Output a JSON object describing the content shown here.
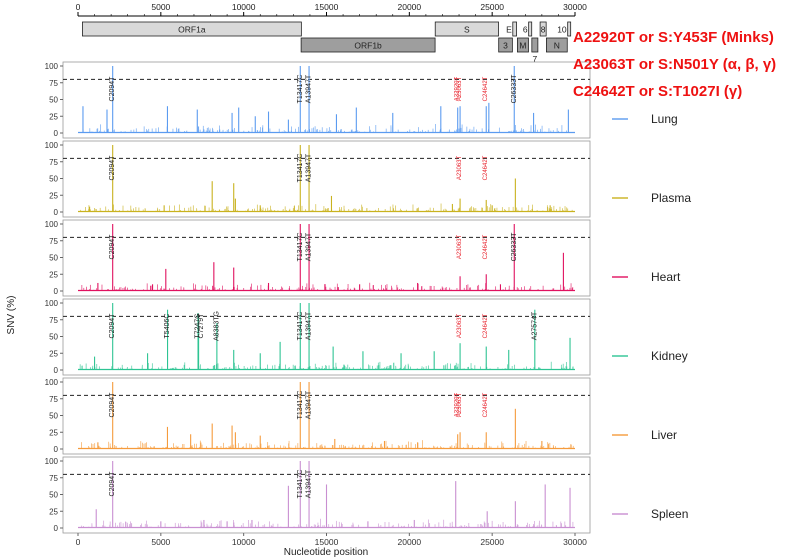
{
  "chart_data": {
    "type": "line",
    "xlabel": "Nucleotide position",
    "ylabel": "SNV (%)",
    "xlim": [
      0,
      30000
    ],
    "ylim": [
      0,
      100
    ],
    "x_ticks": [
      0,
      5000,
      10000,
      15000,
      20000,
      25000,
      30000
    ],
    "y_ticks": [
      0,
      25,
      50,
      75,
      100
    ],
    "threshold": 80,
    "threshold_style": "dashed",
    "genome_map": {
      "ticks": [
        0,
        5000,
        10000,
        15000,
        20000,
        25000,
        30000
      ],
      "genes": [
        {
          "label": "ORF1a",
          "start": 266,
          "end": 13483,
          "row": 1,
          "fill": "#d9d9d9"
        },
        {
          "label": "ORF1b",
          "start": 13468,
          "end": 21555,
          "row": 2,
          "fill": "#9e9e9e"
        },
        {
          "label": "S",
          "start": 21563,
          "end": 25384,
          "row": 1,
          "fill": "#d9d9d9"
        },
        {
          "label": "3",
          "start": 25393,
          "end": 26220,
          "row": 2,
          "fill": "#9e9e9e"
        },
        {
          "label": "E",
          "start": 26245,
          "end": 26472,
          "row": 1,
          "fill": "#d9d9d9"
        },
        {
          "label": "M",
          "start": 26523,
          "end": 27191,
          "row": 2,
          "fill": "#9e9e9e"
        },
        {
          "label": "6",
          "start": 27202,
          "end": 27387,
          "row": 1,
          "fill": "#d9d9d9"
        },
        {
          "label": "7",
          "start": 27394,
          "end": 27759,
          "row": 2,
          "fill": "#9e9e9e"
        },
        {
          "label": "8",
          "start": 27894,
          "end": 28259,
          "row": 1,
          "fill": "#d9d9d9"
        },
        {
          "label": "N",
          "start": 28274,
          "end": 29533,
          "row": 2,
          "fill": "#9e9e9e"
        },
        {
          "label": "10",
          "start": 29558,
          "end": 29674,
          "row": 1,
          "fill": "#d9d9d9"
        }
      ]
    },
    "mutation_notes": [
      "A22920T or S:Y453F (Minks)",
      "A23063T or S:N501Y (α, β, γ)",
      "C24642T or S:T1027I (γ)"
    ],
    "series": [
      {
        "name": "Lung",
        "color": "#5b9bf0",
        "peaks": [
          [
            2094,
            100
          ],
          [
            13417,
            100
          ],
          [
            13947,
            100
          ],
          [
            26333,
            100
          ],
          [
            300,
            40
          ],
          [
            1750,
            35
          ],
          [
            5400,
            40
          ],
          [
            7200,
            35
          ],
          [
            9300,
            30
          ],
          [
            9700,
            38
          ],
          [
            10700,
            25
          ],
          [
            11500,
            32
          ],
          [
            12700,
            20
          ],
          [
            15600,
            28
          ],
          [
            16800,
            38
          ],
          [
            19000,
            30
          ],
          [
            21900,
            40
          ],
          [
            22920,
            38
          ],
          [
            23063,
            40
          ],
          [
            24642,
            40
          ],
          [
            24800,
            45
          ],
          [
            27500,
            30
          ],
          [
            29600,
            35
          ]
        ],
        "labels": [
          {
            "text": "C2094T",
            "x": 2094,
            "red": false
          },
          {
            "text": "T13417C",
            "x": 13417,
            "red": false
          },
          {
            "text": "A13947T",
            "x": 13947,
            "red": false
          },
          {
            "text": "C26333T",
            "x": 26333,
            "red": false
          },
          {
            "text": "A22920T",
            "x": 22920,
            "red": true
          },
          {
            "text": "A23063T",
            "x": 23063,
            "red": true
          },
          {
            "text": "C24642T",
            "x": 24642,
            "red": true
          }
        ]
      },
      {
        "name": "Plasma",
        "color": "#c9b21f",
        "peaks": [
          [
            2094,
            100
          ],
          [
            13417,
            100
          ],
          [
            13947,
            100
          ],
          [
            8100,
            46
          ],
          [
            9400,
            43
          ],
          [
            9500,
            20
          ],
          [
            15300,
            24
          ],
          [
            23063,
            20
          ],
          [
            24642,
            18
          ],
          [
            26400,
            50
          ],
          [
            700,
            8
          ],
          [
            5200,
            10
          ],
          [
            11000,
            10
          ],
          [
            22600,
            12
          ],
          [
            25000,
            10
          ],
          [
            28500,
            10
          ]
        ],
        "labels": [
          {
            "text": "C2094T",
            "x": 2094,
            "red": false
          },
          {
            "text": "T13417C",
            "x": 13417,
            "red": false
          },
          {
            "text": "A13947T",
            "x": 13947,
            "red": false
          },
          {
            "text": "A23063T",
            "x": 23063,
            "red": true
          },
          {
            "text": "C24642T",
            "x": 24642,
            "red": true
          }
        ]
      },
      {
        "name": "Heart",
        "color": "#e0115f",
        "peaks": [
          [
            2094,
            100
          ],
          [
            13417,
            100
          ],
          [
            13947,
            100
          ],
          [
            26333,
            100
          ],
          [
            5300,
            33
          ],
          [
            8200,
            43
          ],
          [
            9400,
            35
          ],
          [
            23063,
            22
          ],
          [
            24642,
            25
          ],
          [
            29300,
            57
          ],
          [
            1200,
            12
          ],
          [
            4500,
            10
          ],
          [
            11500,
            12
          ],
          [
            17000,
            10
          ],
          [
            20500,
            12
          ],
          [
            25500,
            10
          ]
        ],
        "labels": [
          {
            "text": "C2094T",
            "x": 2094,
            "red": false
          },
          {
            "text": "T13417C",
            "x": 13417,
            "red": false
          },
          {
            "text": "A13947T",
            "x": 13947,
            "red": false
          },
          {
            "text": "C26333T",
            "x": 26333,
            "red": false
          },
          {
            "text": "A23063T",
            "x": 23063,
            "red": true
          },
          {
            "text": "C24642T",
            "x": 24642,
            "red": true
          }
        ]
      },
      {
        "name": "Kidney",
        "color": "#2ec493",
        "peaks": [
          [
            2094,
            100
          ],
          [
            5406,
            90
          ],
          [
            7247,
            85
          ],
          [
            7279,
            80
          ],
          [
            8383,
            70
          ],
          [
            13417,
            100
          ],
          [
            13947,
            100
          ],
          [
            27574,
            90
          ],
          [
            1000,
            20
          ],
          [
            4200,
            25
          ],
          [
            9400,
            30
          ],
          [
            11000,
            25
          ],
          [
            12200,
            42
          ],
          [
            15400,
            35
          ],
          [
            17200,
            28
          ],
          [
            19500,
            25
          ],
          [
            21500,
            28
          ],
          [
            23063,
            40
          ],
          [
            24642,
            35
          ],
          [
            26000,
            30
          ],
          [
            29700,
            48
          ]
        ],
        "labels": [
          {
            "text": "C2094T",
            "x": 2094,
            "red": false
          },
          {
            "text": "T5406C",
            "x": 5406,
            "red": false
          },
          {
            "text": "T7247G",
            "x": 7247,
            "red": false
          },
          {
            "text": "C7279T",
            "x": 7279,
            "red": false
          },
          {
            "text": "A8383TG",
            "x": 8383,
            "red": false
          },
          {
            "text": "T13417C",
            "x": 13417,
            "red": false
          },
          {
            "text": "A13947T",
            "x": 13947,
            "red": false
          },
          {
            "text": "A27574T",
            "x": 27574,
            "red": false
          },
          {
            "text": "A23063T",
            "x": 23063,
            "red": true
          },
          {
            "text": "C24642T",
            "x": 24642,
            "red": true
          }
        ]
      },
      {
        "name": "Liver",
        "color": "#f59b3c",
        "peaks": [
          [
            2094,
            100
          ],
          [
            13417,
            100
          ],
          [
            13947,
            100
          ],
          [
            5400,
            33
          ],
          [
            6800,
            22
          ],
          [
            8100,
            38
          ],
          [
            9300,
            35
          ],
          [
            9500,
            25
          ],
          [
            11000,
            20
          ],
          [
            22920,
            22
          ],
          [
            23063,
            25
          ],
          [
            24642,
            25
          ],
          [
            26400,
            60
          ],
          [
            1200,
            10
          ],
          [
            15500,
            15
          ],
          [
            18500,
            12
          ],
          [
            20500,
            10
          ],
          [
            28000,
            12
          ]
        ],
        "labels": [
          {
            "text": "C2094T",
            "x": 2094,
            "red": false
          },
          {
            "text": "T13417C",
            "x": 13417,
            "red": false
          },
          {
            "text": "A13947T",
            "x": 13947,
            "red": false
          },
          {
            "text": "A22920T",
            "x": 22920,
            "red": true
          },
          {
            "text": "A23063T",
            "x": 23063,
            "red": true
          },
          {
            "text": "C24642T",
            "x": 24642,
            "red": true
          }
        ]
      },
      {
        "name": "Spleen",
        "color": "#c98fd1",
        "peaks": [
          [
            2094,
            100
          ],
          [
            13417,
            100
          ],
          [
            13947,
            100
          ],
          [
            1100,
            28
          ],
          [
            12700,
            63
          ],
          [
            15000,
            65
          ],
          [
            22800,
            70
          ],
          [
            24700,
            25
          ],
          [
            26400,
            40
          ],
          [
            28200,
            65
          ],
          [
            29700,
            60
          ],
          [
            5000,
            10
          ],
          [
            7600,
            12
          ],
          [
            9000,
            10
          ],
          [
            10500,
            12
          ],
          [
            17500,
            10
          ],
          [
            20300,
            12
          ]
        ],
        "labels": [
          {
            "text": "C2094T",
            "x": 2094,
            "red": false
          },
          {
            "text": "T13417C",
            "x": 13417,
            "red": false
          },
          {
            "text": "A13947T",
            "x": 13947,
            "red": false
          }
        ]
      }
    ]
  }
}
